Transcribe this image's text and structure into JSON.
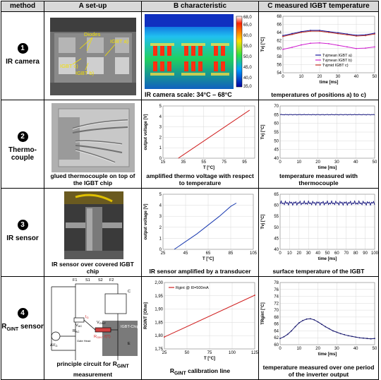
{
  "header": {
    "method": "method",
    "col_a": "A  set-up",
    "col_b": "B  characteristic",
    "col_c": "C  measured IGBT temperature"
  },
  "rows": [
    {
      "num": "1",
      "method": "IR camera",
      "setup_labels": {
        "diodes": "Diodes",
        "igbt_a": "IGBT a)",
        "igbt_b": "IGBT b)",
        "igbt_c": "IGBT c)"
      },
      "colorbar_ticks": [
        "68,0",
        "65,0",
        "60,0",
        "55,0",
        "50,0",
        "45,0",
        "40,0",
        "35,0"
      ],
      "characteristic_caption": "IR camera scale: 34°C – 68°C",
      "measured_caption": "temperatures of positions a) to c)"
    },
    {
      "num": "2",
      "method": "Thermo-couple",
      "setup_caption": "glued thermocouple on top of the IGBT chip",
      "characteristic_caption": "amplified thermo voltage with respect to temperature",
      "measured_caption": "temperature measured with thermocouple"
    },
    {
      "num": "3",
      "method": "IR sensor",
      "setup_caption": "IR sensor over covered IGBT chip",
      "characteristic_caption": "IR sensor amplified by a transducer",
      "measured_caption": "surface temperature of the IGBT"
    },
    {
      "num": "4",
      "method": "R",
      "method_sub": "GINT",
      "method_suffix": " sensor",
      "setup_caption": "principle circuit for R",
      "setup_caption_sub": "GINT",
      "setup_caption_suffix": " measurement",
      "circuit_labels": {
        "chip": "IGBT-Chip",
        "vac": "V",
        "vac_sub": "AC",
        "rac": "R",
        "rac_sub": "AC",
        "dvg": "ΔV",
        "dvg_sub": "G",
        "vgint": "V",
        "vgint_sub": "GINT",
        "rgint": "R",
        "rgint_sub": "GINT",
        "rgint_suffix": " f(T)",
        "ig": "I",
        "ig_sub": "G",
        "f1": "F1",
        "s1": "S1",
        "f2": "F2",
        "s2": "S2",
        "c": "C",
        "e": "E",
        "gate": "Gate Head"
      },
      "characteristic_caption": "R",
      "characteristic_caption_sub": "GINT",
      "characteristic_caption_suffix": " calibration line",
      "measured_caption": "temperature measured over one period of the inverter output"
    }
  ],
  "chart_data": [
    {
      "id": "c1",
      "type": "line",
      "xlabel": "time [ms]",
      "ylabel": "Tvj [°C]",
      "xlim": [
        0,
        50
      ],
      "ylim": [
        54,
        68
      ],
      "xticks": [
        0,
        10,
        20,
        30,
        40,
        50
      ],
      "yticks": [
        54,
        56,
        58,
        60,
        62,
        64,
        66,
        68
      ],
      "legend": "center-right",
      "series": [
        {
          "name": "Tvjmean IGBT a)",
          "color": "#1a1aa0",
          "x": [
            0,
            5,
            10,
            15,
            20,
            25,
            30,
            35,
            40,
            45,
            50
          ],
          "y": [
            63.2,
            63.7,
            64.2,
            64.5,
            64.5,
            64.2,
            63.9,
            63.6,
            63.3,
            63.4,
            63.8
          ]
        },
        {
          "name": "Tvjmean IGBT b)",
          "color": "#d020d0",
          "x": [
            0,
            5,
            10,
            15,
            20,
            25,
            30,
            35,
            40,
            45,
            50
          ],
          "y": [
            59.8,
            60.3,
            60.9,
            61.3,
            61.4,
            61.2,
            60.8,
            60.4,
            60.0,
            60.1,
            60.4
          ]
        },
        {
          "name": "Tvjmid IGBT c)",
          "color": "#c03020",
          "x": [
            0,
            5,
            10,
            15,
            20,
            25,
            30,
            35,
            40,
            45,
            50
          ],
          "y": [
            63.0,
            63.5,
            64.0,
            64.3,
            64.3,
            64.0,
            63.7,
            63.4,
            63.1,
            63.2,
            63.6
          ]
        }
      ]
    },
    {
      "id": "c2",
      "type": "line",
      "xlabel": "T [°C]",
      "ylabel": "output voltage [V]",
      "xlim": [
        15,
        105
      ],
      "ylim": [
        0,
        5
      ],
      "xticks": [
        15,
        35,
        55,
        75,
        95
      ],
      "yticks": [
        0,
        1,
        2,
        3,
        4,
        5
      ],
      "series": [
        {
          "color": "#d02020",
          "x": [
            30,
            100
          ],
          "y": [
            0,
            4.6
          ]
        }
      ]
    },
    {
      "id": "c3",
      "type": "line",
      "xlabel": "time [ms]",
      "ylabel": "Tvj [°C]",
      "xlim": [
        0,
        50
      ],
      "ylim": [
        40,
        70
      ],
      "xticks": [
        0,
        10,
        20,
        30,
        40,
        50
      ],
      "yticks": [
        40,
        45,
        50,
        55,
        60,
        65,
        70
      ],
      "series": [
        {
          "color": "#1a1a80",
          "x": [
            0,
            50
          ],
          "y": [
            65,
            65
          ]
        }
      ]
    },
    {
      "id": "c4",
      "type": "line",
      "xlabel": "T [°C]",
      "ylabel": "output voltage [V]",
      "xlim": [
        25,
        105
      ],
      "ylim": [
        0,
        5
      ],
      "xticks": [
        25,
        45,
        65,
        85,
        105
      ],
      "yticks": [
        0,
        1,
        2,
        3,
        4,
        5
      ],
      "series": [
        {
          "color": "#1a3ab0",
          "x": [
            35,
            45,
            55,
            65,
            75,
            85,
            90
          ],
          "y": [
            0,
            0.7,
            1.4,
            2.2,
            3.0,
            3.9,
            4.2
          ]
        }
      ]
    },
    {
      "id": "c5",
      "type": "line",
      "xlabel": "time [ms]",
      "ylabel": "Tvj [°C]",
      "xlim": [
        0,
        100
      ],
      "ylim": [
        40,
        65
      ],
      "xticks": [
        0,
        10,
        20,
        30,
        40,
        50,
        60,
        70,
        80,
        90,
        100
      ],
      "yticks": [
        40,
        45,
        50,
        55,
        60,
        65
      ],
      "series": [
        {
          "color": "#1a1a80",
          "x": [
            0,
            100
          ],
          "y": [
            61,
            61
          ]
        }
      ]
    },
    {
      "id": "c6",
      "type": "line",
      "xlabel": "T [°C]",
      "ylabel": "RGINT [Ohm]",
      "xlim": [
        25,
        125
      ],
      "ylim": [
        1.75,
        2.0
      ],
      "xticks": [
        25,
        50,
        75,
        100,
        125
      ],
      "yticks": [
        1.75,
        1.8,
        1.85,
        1.9,
        1.95,
        2.0
      ],
      "ytick_labels": [
        "1,75",
        "1,80",
        "1,85",
        "1,90",
        "1,95",
        "2,00"
      ],
      "legend": "top-left",
      "series": [
        {
          "name": "Rgint @ I0=500mA",
          "color": "#d02020",
          "x": [
            25,
            125
          ],
          "y": [
            1.795,
            1.952
          ]
        }
      ]
    },
    {
      "id": "c7",
      "type": "line",
      "xlabel": "time [ms]",
      "ylabel": "TRgint [°C]",
      "xlim": [
        0,
        50
      ],
      "ylim": [
        60,
        78
      ],
      "xticks": [
        0,
        10,
        20,
        30,
        40,
        50
      ],
      "yticks": [
        60,
        62,
        64,
        66,
        68,
        70,
        72,
        74,
        76,
        78
      ],
      "series": [
        {
          "color": "#1a1a70",
          "x": [
            0,
            2,
            4,
            6,
            8,
            10,
            12,
            14,
            16,
            18,
            20,
            22,
            24,
            26,
            28,
            30,
            32,
            34,
            36,
            38,
            40,
            42,
            44,
            46,
            48,
            50
          ],
          "y": [
            61.8,
            62.3,
            63.0,
            64.0,
            65.2,
            66.3,
            67.0,
            67.4,
            67.5,
            67.2,
            66.6,
            65.9,
            65.2,
            64.6,
            64.0,
            63.6,
            63.2,
            62.9,
            62.6,
            62.4,
            62.2,
            62.0,
            61.9,
            61.8,
            61.7,
            61.8
          ]
        }
      ]
    }
  ]
}
